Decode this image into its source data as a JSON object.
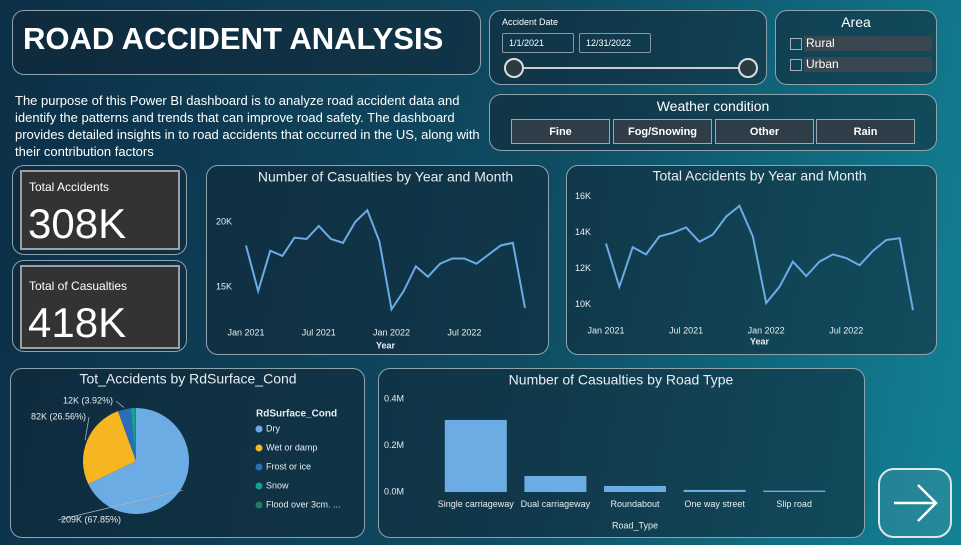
{
  "header": {
    "title": "ROAD ACCIDENT ANALYSIS",
    "description": "The purpose of this Power BI dashboard is to analyze road accident data and identify the patterns and trends that can improve road safety. The dashboard provides detailed insights in to road accidents that occurred  in the  US, along with their contribution factors"
  },
  "filters": {
    "date": {
      "label": "Accident Date",
      "start": "1/1/2021",
      "end": "12/31/2022"
    },
    "area": {
      "title": "Area",
      "options": [
        "Rural",
        "Urban"
      ]
    },
    "weather": {
      "title": "Weather condition",
      "options": [
        "Fine",
        "Fog/Snowing",
        "Other",
        "Rain"
      ]
    }
  },
  "kpis": [
    {
      "label": "Total Accidents",
      "value": "308K"
    },
    {
      "label": "Total of Casualties",
      "value": "418K"
    }
  ],
  "chart_data": [
    {
      "type": "line",
      "title": "Number of Casualties by Year and Month",
      "x_label": "Year",
      "color": "#6cace4",
      "categories": [
        "Jan 2021",
        null,
        null,
        null,
        null,
        null,
        "Jul 2021",
        null,
        null,
        null,
        null,
        null,
        "Jan 2022",
        null,
        null,
        null,
        null,
        null,
        "Jul 2022",
        null,
        null,
        null,
        null,
        null
      ],
      "values": [
        18200,
        14700,
        17800,
        17400,
        18800,
        18700,
        19700,
        18700,
        18400,
        20000,
        20900,
        18500,
        13300,
        14700,
        16600,
        15800,
        16800,
        17200,
        17200,
        16800,
        17500,
        18200,
        18400,
        13400
      ],
      "ylim": [
        12400,
        22000
      ],
      "yticks": [
        {
          "value": 15000,
          "label": "15K"
        },
        {
          "value": 20000,
          "label": "20K"
        }
      ]
    },
    {
      "type": "line",
      "title": "Total Accidents by Year and Month",
      "x_label": "Year",
      "color": "#6cace4",
      "categories": [
        "Jan 2021",
        null,
        null,
        null,
        null,
        null,
        "Jul 2021",
        null,
        null,
        null,
        null,
        null,
        "Jan 2022",
        null,
        null,
        null,
        null,
        null,
        "Jul 2022",
        null,
        null,
        null,
        null,
        null
      ],
      "values": [
        13400,
        11000,
        13200,
        12800,
        13800,
        14000,
        14300,
        13500,
        13900,
        14900,
        15500,
        13800,
        10100,
        11000,
        12400,
        11600,
        12400,
        12800,
        12600,
        12200,
        13000,
        13600,
        13700,
        9700
      ],
      "ylim": [
        9100,
        16600
      ],
      "yticks": [
        {
          "value": 10000,
          "label": "10K"
        },
        {
          "value": 12000,
          "label": "12K"
        },
        {
          "value": 14000,
          "label": "14K"
        },
        {
          "value": 16000,
          "label": "16K"
        }
      ]
    },
    {
      "type": "pie",
      "title": "Tot_Accidents by RdSurface_Cond",
      "legend_title": "RdSurface_Cond",
      "categories": [
        "Dry",
        "Wet or damp",
        "Frost or ice",
        "Snow",
        "Flood over 3cm. ..."
      ],
      "values": [
        209000,
        82000,
        12000,
        4500,
        500
      ],
      "value_labels": [
        "209K (67.85%)",
        "82K (26.56%)",
        "12K (3.92%)",
        null,
        null
      ],
      "colors": [
        "#6cace4",
        "#f5b622",
        "#2a6ebb",
        "#14a38b",
        "#1e7f66"
      ]
    },
    {
      "type": "bar",
      "title": "Number of Casualties by Road Type",
      "x_label": "Road_Type",
      "color": "#6cace4",
      "categories": [
        "Single carriageway",
        "Dual carriageway",
        "Roundabout",
        "One way street",
        "Slip road"
      ],
      "values": [
        310000,
        69000,
        26000,
        9000,
        6000
      ],
      "ylim": [
        0,
        410000
      ],
      "yticks": [
        {
          "value": 0,
          "label": "0.0M"
        },
        {
          "value": 200000,
          "label": "0.2M"
        },
        {
          "value": 400000,
          "label": "0.4M"
        }
      ]
    }
  ]
}
